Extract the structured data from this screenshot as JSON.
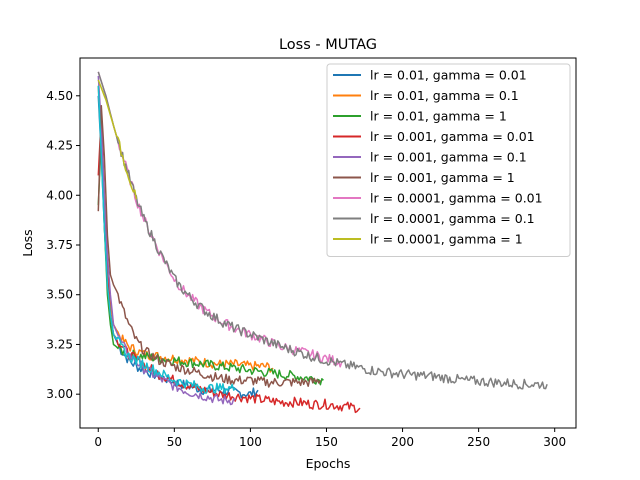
{
  "chart_data": {
    "type": "line",
    "title": "Loss - MUTAG",
    "xlabel": "Epochs",
    "ylabel": "Loss",
    "xlim": [
      -12,
      314
    ],
    "ylim": [
      2.83,
      4.69
    ],
    "xticks": [
      0,
      50,
      100,
      150,
      200,
      250,
      300
    ],
    "yticks": [
      3.0,
      3.25,
      3.5,
      3.75,
      4.0,
      4.25,
      4.5
    ],
    "xtick_labels": [
      "0",
      "50",
      "100",
      "150",
      "200",
      "250",
      "300"
    ],
    "ytick_labels": [
      "3.00",
      "3.25",
      "3.50",
      "3.75",
      "4.00",
      "4.25",
      "4.50"
    ],
    "grid": false,
    "legend_position": "top-right",
    "series": [
      {
        "name": "lr = 0.01, gamma = 0.01",
        "color": "#1f77b4",
        "x": [
          0,
          2,
          4,
          6,
          8,
          10,
          15,
          20,
          25,
          30,
          40,
          50,
          60,
          70,
          80,
          90,
          100,
          105
        ],
        "y": [
          4.5,
          4.2,
          3.85,
          3.55,
          3.4,
          3.3,
          3.22,
          3.17,
          3.14,
          3.12,
          3.09,
          3.06,
          3.04,
          3.02,
          3.02,
          3.01,
          3.0,
          3.02
        ]
      },
      {
        "name": "lr = 0.01, gamma = 0.1",
        "color": "#ff7f0e",
        "x": [
          0,
          2,
          4,
          6,
          8,
          10,
          15,
          20,
          30,
          40,
          50,
          60,
          70,
          80,
          90,
          100,
          110,
          115
        ],
        "y": [
          4.55,
          4.25,
          3.9,
          3.6,
          3.45,
          3.35,
          3.28,
          3.24,
          3.2,
          3.19,
          3.18,
          3.17,
          3.16,
          3.15,
          3.15,
          3.14,
          3.14,
          3.13
        ]
      },
      {
        "name": "lr = 0.01, gamma = 1",
        "color": "#2ca02c",
        "x": [
          0,
          2,
          4,
          6,
          8,
          10,
          15,
          20,
          30,
          40,
          50,
          60,
          70,
          80,
          90,
          100,
          110,
          120,
          130,
          140,
          148
        ],
        "y": [
          3.95,
          4.3,
          3.85,
          3.5,
          3.35,
          3.25,
          3.22,
          3.2,
          3.19,
          3.18,
          3.17,
          3.16,
          3.15,
          3.14,
          3.13,
          3.12,
          3.11,
          3.1,
          3.09,
          3.08,
          3.07
        ]
      },
      {
        "name": "lr = 0.001, gamma = 0.01",
        "color": "#d62728",
        "x": [
          0,
          2,
          4,
          6,
          8,
          10,
          15,
          20,
          30,
          40,
          50,
          60,
          70,
          80,
          90,
          100,
          110,
          120,
          130,
          140,
          150,
          160,
          172
        ],
        "y": [
          4.1,
          4.4,
          4.0,
          3.6,
          3.4,
          3.3,
          3.25,
          3.2,
          3.15,
          3.1,
          3.07,
          3.04,
          3.02,
          3.0,
          2.99,
          2.98,
          2.97,
          2.96,
          2.96,
          2.95,
          2.95,
          2.94,
          2.93
        ]
      },
      {
        "name": "lr = 0.001, gamma = 0.1",
        "color": "#9467bd",
        "x": [
          0,
          2,
          4,
          6,
          8,
          10,
          15,
          20,
          30,
          40,
          50,
          60,
          70,
          80,
          90
        ],
        "y": [
          4.6,
          4.35,
          4.0,
          3.7,
          3.5,
          3.35,
          3.26,
          3.2,
          3.13,
          3.08,
          3.04,
          3.01,
          2.99,
          2.97,
          2.97
        ]
      },
      {
        "name": "lr = 0.001, gamma = 1",
        "color": "#8c564b",
        "x": [
          0,
          2,
          4,
          6,
          8,
          10,
          12,
          15,
          20,
          25,
          30,
          40,
          50,
          60,
          70,
          80,
          90,
          100,
          110,
          120,
          130,
          140,
          146
        ],
        "y": [
          3.92,
          4.45,
          4.2,
          3.8,
          3.6,
          3.55,
          3.52,
          3.45,
          3.35,
          3.27,
          3.22,
          3.17,
          3.14,
          3.12,
          3.1,
          3.08,
          3.07,
          3.07,
          3.06,
          3.06,
          3.06,
          3.06,
          3.07
        ]
      },
      {
        "name": "lr = 0.0001, gamma = 0.01",
        "color": "#e377c2",
        "x": [
          0,
          5,
          10,
          15,
          20,
          25,
          30,
          35,
          40,
          45,
          50,
          55,
          60,
          70,
          80,
          90,
          100,
          110,
          120,
          130,
          140,
          150,
          160
        ],
        "y": [
          4.62,
          4.5,
          4.35,
          4.22,
          4.1,
          3.98,
          3.88,
          3.8,
          3.72,
          3.65,
          3.58,
          3.53,
          3.49,
          3.42,
          3.37,
          3.33,
          3.3,
          3.27,
          3.24,
          3.22,
          3.2,
          3.18,
          3.16
        ]
      },
      {
        "name": "lr = 0.0001, gamma = 0.1",
        "color": "#7f7f7f",
        "x": [
          0,
          5,
          10,
          15,
          20,
          25,
          30,
          35,
          40,
          45,
          50,
          55,
          60,
          70,
          80,
          90,
          100,
          110,
          120,
          140,
          160,
          180,
          200,
          220,
          240,
          260,
          280,
          295
        ],
        "y": [
          4.62,
          4.5,
          4.35,
          4.22,
          4.1,
          3.98,
          3.88,
          3.8,
          3.72,
          3.65,
          3.58,
          3.53,
          3.49,
          3.42,
          3.37,
          3.33,
          3.3,
          3.27,
          3.24,
          3.19,
          3.15,
          3.12,
          3.1,
          3.09,
          3.07,
          3.06,
          3.05,
          3.05
        ]
      },
      {
        "name": "lr = 0.0001, gamma = 1",
        "color": "#bcbd22",
        "x": [
          0,
          5,
          10,
          15,
          20,
          25
        ],
        "y": [
          4.58,
          4.48,
          4.35,
          4.22,
          4.1,
          3.98
        ]
      },
      {
        "name": "",
        "color": "#17becf",
        "x": [
          0,
          2,
          4,
          6,
          8,
          10,
          15,
          20,
          30,
          40,
          50,
          60,
          70,
          80,
          90
        ],
        "y": [
          4.55,
          4.2,
          3.85,
          3.55,
          3.4,
          3.3,
          3.24,
          3.19,
          3.15,
          3.11,
          3.07,
          3.05,
          3.03,
          3.03,
          3.03
        ]
      }
    ]
  }
}
